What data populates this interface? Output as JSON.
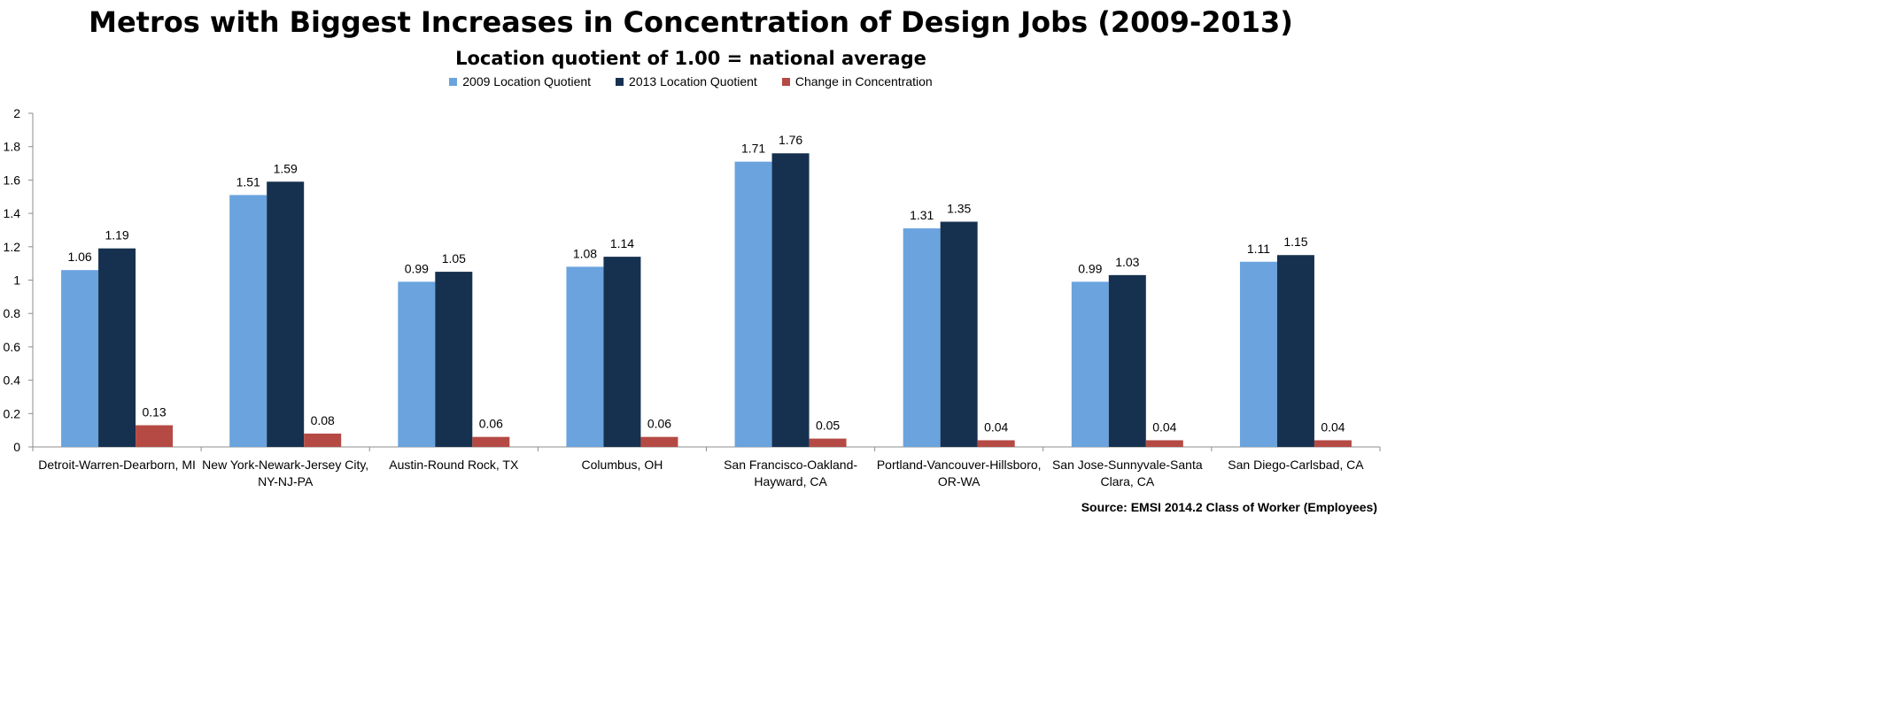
{
  "chart_data": {
    "type": "bar",
    "title": "Metros with Biggest Increases in Concentration of Design Jobs (2009-2013)",
    "subtitle": "Location quotient of 1.00 = national average",
    "source": "Source: EMSI 2014.2 Class of Worker (Employees)",
    "categories": [
      [
        "Detroit-Warren-Dearborn, MI"
      ],
      [
        "New York-Newark-Jersey City,",
        "NY-NJ-PA"
      ],
      [
        "Austin-Round Rock, TX"
      ],
      [
        "Columbus, OH"
      ],
      [
        "San Francisco-Oakland-",
        "Hayward, CA"
      ],
      [
        "Portland-Vancouver-Hillsboro,",
        "OR-WA"
      ],
      [
        "San Jose-Sunnyvale-Santa",
        "Clara, CA"
      ],
      [
        "San Diego-Carlsbad, CA"
      ]
    ],
    "series": [
      {
        "name": "2009 Location Quotient",
        "color": "#6aa3de",
        "values": [
          1.06,
          1.51,
          0.99,
          1.08,
          1.71,
          1.31,
          0.99,
          1.11
        ],
        "labels": [
          "1.06",
          "1.51",
          "0.99",
          "1.08",
          "1.71",
          "1.31",
          "0.99",
          "1.11"
        ]
      },
      {
        "name": "2013 Location Quotient",
        "color": "#16314f",
        "values": [
          1.19,
          1.59,
          1.05,
          1.14,
          1.76,
          1.35,
          1.03,
          1.15
        ],
        "labels": [
          "1.19",
          "1.59",
          "1.05",
          "1.14",
          "1.76",
          "1.35",
          "1.03",
          "1.15"
        ]
      },
      {
        "name": "Change in Concentration",
        "color": "#b54a44",
        "values": [
          0.13,
          0.08,
          0.06,
          0.06,
          0.05,
          0.04,
          0.04,
          0.04
        ],
        "labels": [
          "0.13",
          "0.08",
          "0.06",
          "0.06",
          "0.05",
          "0.04",
          "0.04",
          "0.04"
        ]
      }
    ],
    "ylim": [
      0,
      2
    ],
    "yticks": [
      "0",
      "0.2",
      "0.4",
      "0.6",
      "0.8",
      "1",
      "1.2",
      "1.4",
      "1.6",
      "1.8",
      "2"
    ],
    "legend": "top-center",
    "grid": false
  }
}
